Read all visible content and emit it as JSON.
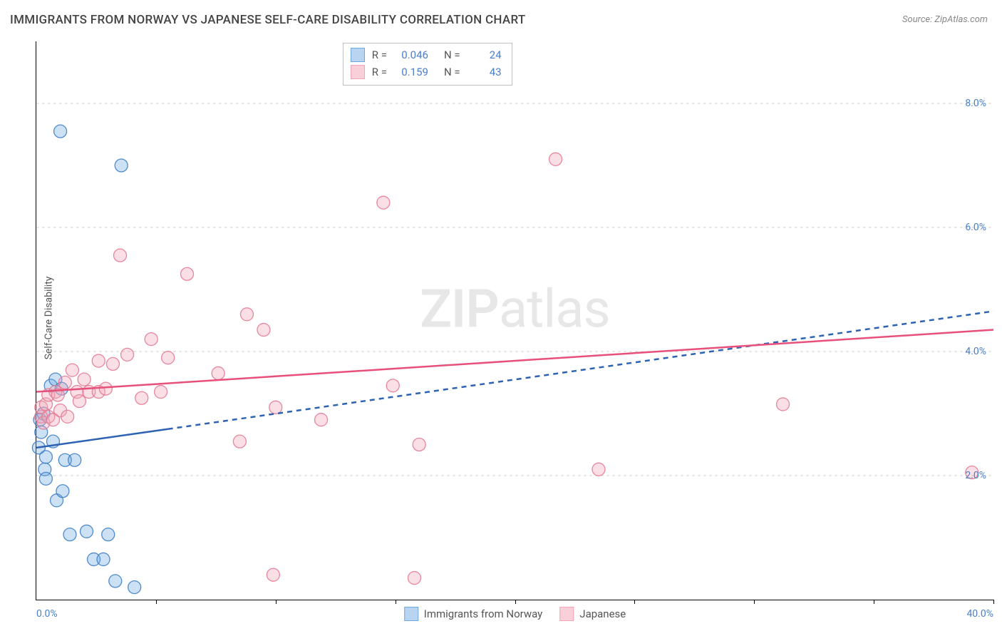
{
  "title": "IMMIGRANTS FROM NORWAY VS JAPANESE SELF-CARE DISABILITY CORRELATION CHART",
  "source": "Source: ZipAtlas.com",
  "ylabel": "Self-Care Disability",
  "watermark": {
    "bold": "ZIP",
    "rest": "atlas"
  },
  "chart": {
    "type": "scatter",
    "background_color": "#ffffff",
    "grid_color": "#d0d0d0",
    "axis_color": "#000000",
    "tick_label_color": "#4a7fc9",
    "xlim": [
      0,
      40
    ],
    "ylim": [
      0,
      9
    ],
    "xtick_labels": {
      "left": "0.0%",
      "right": "40.0%"
    },
    "xtick_positions": [
      0,
      5,
      10,
      15,
      20,
      25,
      30,
      35,
      40
    ],
    "yticks": [
      2,
      4,
      6,
      8
    ],
    "ytick_labels": [
      "2.0%",
      "4.0%",
      "6.0%",
      "8.0%"
    ],
    "marker_radius": 9,
    "marker_fill_opacity": 0.35,
    "marker_stroke_opacity": 0.9,
    "series": [
      {
        "name": "Immigrants from Norway",
        "color": "#6ea8e0",
        "stroke": "#3f80c7",
        "R": "0.046",
        "N": "24",
        "regression": {
          "solid": {
            "x1": 0,
            "y1": 2.45,
            "x2": 5.5,
            "y2": 2.75
          },
          "dashed": {
            "x1": 5.5,
            "y1": 2.75,
            "x2": 40,
            "y2": 4.65
          },
          "line_color": "#2d63b2",
          "line_width": 2.5
        },
        "points": [
          [
            0.1,
            2.45
          ],
          [
            0.15,
            2.9
          ],
          [
            0.2,
            2.7
          ],
          [
            0.3,
            3.0
          ],
          [
            0.35,
            2.1
          ],
          [
            0.4,
            2.3
          ],
          [
            0.4,
            1.95
          ],
          [
            0.6,
            3.45
          ],
          [
            0.7,
            2.55
          ],
          [
            0.8,
            3.55
          ],
          [
            0.85,
            1.6
          ],
          [
            1.0,
            7.55
          ],
          [
            1.05,
            3.4
          ],
          [
            1.1,
            1.75
          ],
          [
            1.2,
            2.25
          ],
          [
            1.4,
            1.05
          ],
          [
            1.6,
            2.25
          ],
          [
            2.1,
            1.1
          ],
          [
            2.4,
            0.65
          ],
          [
            2.8,
            0.65
          ],
          [
            3.0,
            1.05
          ],
          [
            3.3,
            0.3
          ],
          [
            3.55,
            7.0
          ],
          [
            4.1,
            0.2
          ]
        ]
      },
      {
        "name": "Japanese",
        "color": "#f2a5b6",
        "stroke": "#e47a93",
        "R": "0.159",
        "N": "43",
        "regression": {
          "solid": {
            "x1": 0,
            "y1": 3.35,
            "x2": 40,
            "y2": 4.35
          },
          "line_color": "#e84f7a",
          "line_width": 2.5
        },
        "points": [
          [
            0.2,
            2.95
          ],
          [
            0.2,
            3.1
          ],
          [
            0.3,
            2.85
          ],
          [
            0.4,
            3.15
          ],
          [
            0.5,
            2.95
          ],
          [
            0.5,
            3.3
          ],
          [
            0.7,
            2.9
          ],
          [
            0.8,
            3.35
          ],
          [
            0.9,
            3.3
          ],
          [
            1.0,
            3.05
          ],
          [
            1.2,
            3.5
          ],
          [
            1.3,
            2.95
          ],
          [
            1.5,
            3.7
          ],
          [
            1.7,
            3.35
          ],
          [
            1.8,
            3.2
          ],
          [
            2.0,
            3.55
          ],
          [
            2.2,
            3.35
          ],
          [
            2.6,
            3.35
          ],
          [
            2.6,
            3.85
          ],
          [
            2.9,
            3.4
          ],
          [
            3.2,
            3.8
          ],
          [
            3.5,
            5.55
          ],
          [
            3.8,
            3.95
          ],
          [
            4.4,
            3.25
          ],
          [
            4.8,
            4.2
          ],
          [
            5.2,
            3.35
          ],
          [
            5.5,
            3.9
          ],
          [
            6.3,
            5.25
          ],
          [
            7.6,
            3.65
          ],
          [
            8.5,
            2.55
          ],
          [
            8.8,
            4.6
          ],
          [
            9.5,
            4.35
          ],
          [
            9.9,
            0.4
          ],
          [
            10.0,
            3.1
          ],
          [
            11.9,
            2.9
          ],
          [
            14.5,
            6.4
          ],
          [
            14.9,
            3.45
          ],
          [
            15.8,
            0.35
          ],
          [
            16.0,
            2.5
          ],
          [
            21.7,
            7.1
          ],
          [
            23.5,
            2.1
          ],
          [
            31.2,
            3.15
          ],
          [
            39.1,
            2.05
          ]
        ]
      }
    ]
  },
  "legend_top": [
    {
      "swatch_fill": "#b9d4f0",
      "swatch_stroke": "#6ea8e0",
      "r_label": "R =",
      "r_value": "0.046",
      "n_label": "N =",
      "n_value": "24"
    },
    {
      "swatch_fill": "#f9d0da",
      "swatch_stroke": "#f2a5b6",
      "r_label": "R =",
      "r_value": "0.159",
      "n_label": "N =",
      "n_value": "43"
    }
  ],
  "legend_bottom_swatches": [
    {
      "fill": "#b9d4f0",
      "stroke": "#6ea8e0"
    },
    {
      "fill": "#f9d0da",
      "stroke": "#f2a5b6"
    }
  ]
}
